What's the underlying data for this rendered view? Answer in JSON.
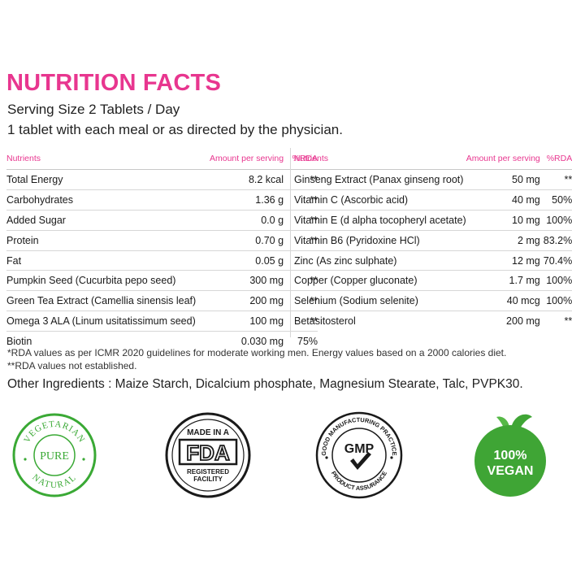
{
  "header": {
    "title": "NUTRITION FACTS",
    "serving": "Serving Size 2 Tablets / Day",
    "direction": "1 tablet with each meal or as directed by the physician."
  },
  "table_headers": {
    "nutrients": "Nutrients",
    "amount": "Amount per serving",
    "rda": "%RDA"
  },
  "left_rows": [
    {
      "name": "Total Energy",
      "amount": "8.2 kcal",
      "rda": "**"
    },
    {
      "name": "Carbohydrates",
      "amount": "1.36 g",
      "rda": "**"
    },
    {
      "name": "Added Sugar",
      "amount": "0.0 g",
      "rda": "**"
    },
    {
      "name": "Protein",
      "amount": "0.70 g",
      "rda": "**"
    },
    {
      "name": "Fat",
      "amount": "0.05 g",
      "rda": ""
    },
    {
      "name": "Pumpkin Seed (Cucurbita pepo seed)",
      "amount": "300 mg",
      "rda": "**"
    },
    {
      "name": "Green Tea Extract (Camellia sinensis leaf)",
      "amount": "200 mg",
      "rda": "**"
    },
    {
      "name": "Omega 3 ALA (Linum usitatissimum seed)",
      "amount": "100 mg",
      "rda": "**"
    },
    {
      "name": "Biotin",
      "amount": "0.030 mg",
      "rda": "75%"
    }
  ],
  "right_rows": [
    {
      "name": "Ginseng Extract (Panax ginseng root)",
      "amount": "50 mg",
      "rda": "**"
    },
    {
      "name": "Vitamin C (Ascorbic acid)",
      "amount": "40 mg",
      "rda": "50%"
    },
    {
      "name": "Vitamin E (d alpha tocopheryl acetate)",
      "amount": "10 mg",
      "rda": "100%"
    },
    {
      "name": "Vitamin B6 (Pyridoxine HCl)",
      "amount": "2 mg",
      "rda": "83.2%"
    },
    {
      "name": "Zinc (As zinc sulphate)",
      "amount": "12 mg",
      "rda": "70.4%"
    },
    {
      "name": "Copper (Copper gluconate)",
      "amount": "1.7 mg",
      "rda": "100%"
    },
    {
      "name": "Selenium (Sodium selenite)",
      "amount": "40 mcg",
      "rda": "100%"
    },
    {
      "name": "Betasitosterol",
      "amount": "200 mg",
      "rda": "**"
    }
  ],
  "notes": {
    "line1": "*RDA values as per ICMR 2020 guidelines for moderate working men. Energy values based on a 2000 calories diet.",
    "line2": "**RDA values not established."
  },
  "other_ingredients": "Other Ingredients : Maize Starch, Dicalcium phosphate, Magnesium Stearate, Talc, PVPK30.",
  "badges": {
    "vegetarian": {
      "top": "VEGETARIAN",
      "center": "PURE",
      "bottom": "NATURAL",
      "icon": "vegetarian-seal-icon",
      "color": "#3aa935"
    },
    "fda": {
      "line1": "MADE IN A",
      "mark": "FDA",
      "line2": "REGISTERED",
      "line3": "FACILITY",
      "icon": "fda-seal-icon",
      "color": "#1a1a1a"
    },
    "gmp": {
      "arc_top": "GOOD MANUFACTURING PRACTICE",
      "mark": "GMP",
      "arc_bottom": "PRODUCT ASSURANCE",
      "icon": "gmp-seal-icon",
      "color": "#1a1a1a"
    },
    "vegan": {
      "line1": "100%",
      "line2": "VEGAN",
      "icon": "vegan-leaf-icon",
      "color": "#3fa535"
    }
  },
  "colors": {
    "accent": "#e8368f",
    "green": "#3aa935"
  }
}
